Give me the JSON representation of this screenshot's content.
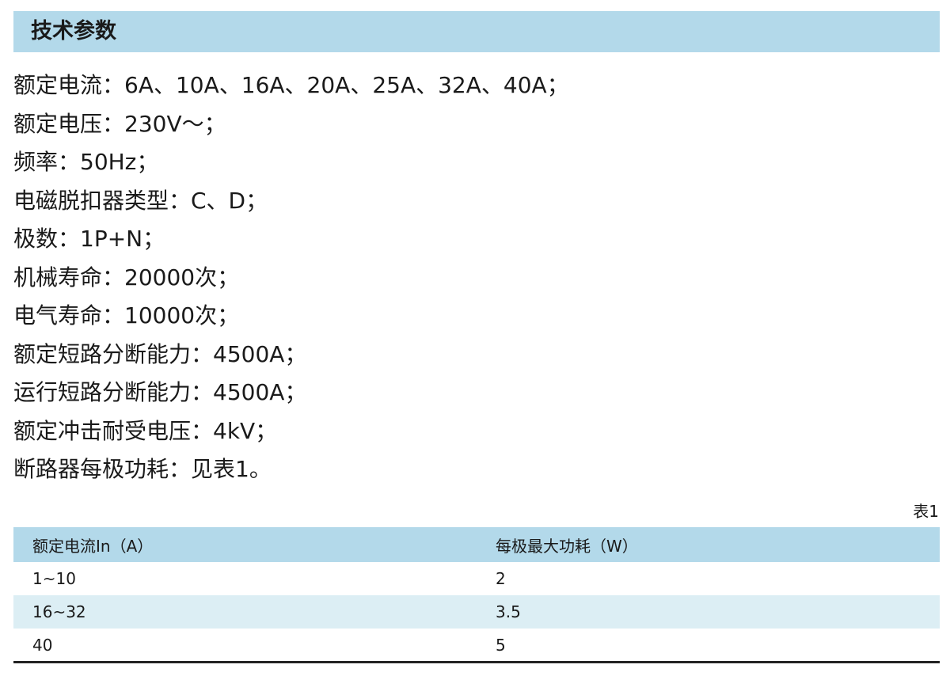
{
  "title": "技术参数",
  "specs": [
    "额定电流：6A、10A、16A、20A、25A、32A、40A；",
    "额定电压：230V～；",
    "频率：50Hz；",
    "电磁脱扣器类型：C、D；",
    "极数：1P+N；",
    "机械寿命：20000次；",
    "电气寿命：10000次；",
    "额定短路分断能力：4500A；",
    "运行短路分断能力：4500A；",
    "额定冲击耐受电压：4kV；",
    "断路器每极功耗：见表1。"
  ],
  "table": {
    "caption": "表1",
    "headers": [
      "额定电流In（A）",
      "每极最大功耗（W）"
    ],
    "rows": [
      [
        "1~10",
        "2"
      ],
      [
        "16~32",
        "3.5"
      ],
      [
        "40",
        "5"
      ]
    ]
  },
  "colors": {
    "header_bg": "#b3d9ea",
    "alt_row_bg": "#dceef4"
  }
}
